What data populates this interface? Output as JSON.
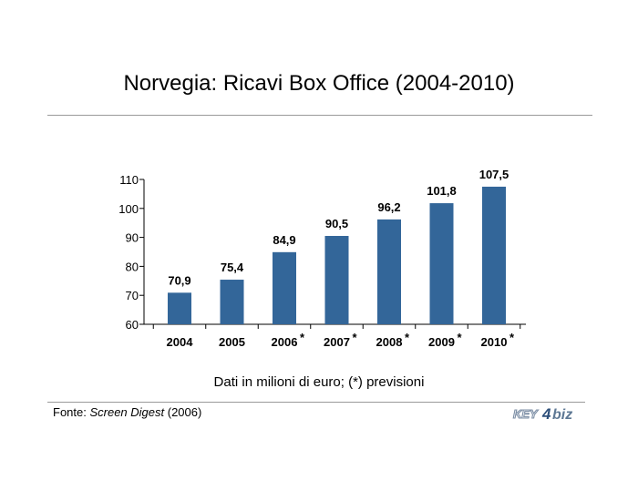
{
  "header": {
    "title": "Norvegia: Ricavi Box Office (2004-2010)"
  },
  "footer": {
    "note": "Dati in milioni di euro; (*) previsioni",
    "source_prefix": "Fonte: ",
    "source_name": "Screen Digest",
    "source_suffix": " (2006)",
    "logo_text_left": "KEY",
    "logo_text_right": "biz"
  },
  "chart_data": {
    "type": "bar",
    "title": "Norvegia: Ricavi Box Office (2004-2010)",
    "categories": [
      "2004",
      "2005",
      "2006",
      "2007",
      "2008",
      "2009",
      "2010"
    ],
    "forecast_marks": [
      "",
      "",
      "*",
      "*",
      "*",
      "*",
      "*"
    ],
    "values": [
      70.9,
      75.4,
      84.9,
      90.5,
      96.2,
      101.8,
      107.5
    ],
    "value_labels": [
      "70,9",
      "75,4",
      "84,9",
      "90,5",
      "96,2",
      "101,8",
      "107,5"
    ],
    "ylim": [
      60,
      110
    ],
    "yticks": [
      60,
      70,
      80,
      90,
      100,
      110
    ],
    "xlabel": "",
    "ylabel": "",
    "grid": false,
    "bar_color": "#336699"
  }
}
